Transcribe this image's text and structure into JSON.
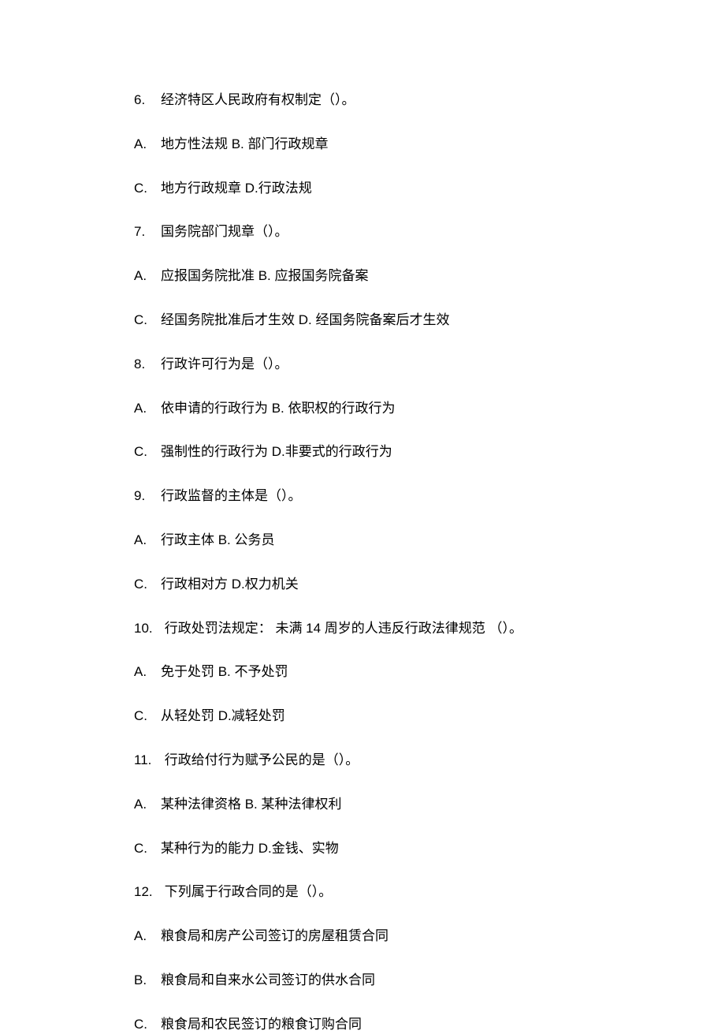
{
  "lines": [
    {
      "label": "6.",
      "text": "经济特区人民政府有权制定（）。"
    },
    {
      "label": "A.",
      "text": "地方性法规 B. 部门行政规章"
    },
    {
      "label": "C.",
      "text": "地方行政规章  D.行政法规"
    },
    {
      "label": "7.",
      "text": "国务院部门规章（）。"
    },
    {
      "label": "A.",
      "text": "应报国务院批准  B. 应报国务院备案"
    },
    {
      "label": "C.",
      "text": "经国务院批准后才生效  D. 经国务院备案后才生效"
    },
    {
      "label": "8.",
      "text": "行政许可行为是（）。"
    },
    {
      "label": "A.",
      "text": "依申请的行政行为  B. 依职权的行政行为"
    },
    {
      "label": "C.",
      "text": "强制性的行政行为  D.非要式的行政行为"
    },
    {
      "label": "9.",
      "text": "行政监督的主体是（）。"
    },
    {
      "label": "A.",
      "text": "行政主体 B. 公务员"
    },
    {
      "label": "C.",
      "text": "行政相对方 D.权力机关"
    },
    {
      "label": "10.",
      "text": " 行政处罚法规定： 未满 14 周岁的人违反行政法律规范 （）。"
    },
    {
      "label": "A.",
      "text": "免于处罚 B. 不予处罚"
    },
    {
      "label": "C.",
      "text": "从轻处罚 D.减轻处罚"
    },
    {
      "label": "11.",
      "text": " 行政给付行为赋予公民的是（）。"
    },
    {
      "label": "A.",
      "text": "某种法律资格  B. 某种法律权利"
    },
    {
      "label": "C.",
      "text": "某种行为的能力  D.金钱、实物"
    },
    {
      "label": "12.",
      "text": " 下列属于行政合同的是（）。"
    },
    {
      "label": "A.",
      "text": "粮食局和房产公司签订的房屋租赁合同"
    },
    {
      "label": "B.",
      "text": "粮食局和自来水公司签订的供水合同"
    },
    {
      "label": "C.",
      "text": "粮食局和农民签订的粮食订购合同"
    }
  ]
}
